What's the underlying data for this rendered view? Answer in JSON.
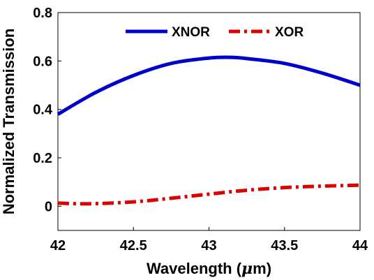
{
  "chart_data": {
    "type": "line",
    "xlabel_prefix": "Wavelength (",
    "xlabel_unit_symbol": "μ",
    "xlabel_suffix": "m)",
    "ylabel": "Normalized Transmission",
    "xlim": [
      42,
      44
    ],
    "ylim": [
      -0.1,
      0.8
    ],
    "xticks": [
      "42",
      "42.5",
      "43",
      "43.5",
      "44"
    ],
    "yticks": [
      "0",
      "0.2",
      "0.4",
      "0.6",
      "0.8"
    ],
    "grid": false,
    "legend_position": "top",
    "series": [
      {
        "name": "XNOR",
        "color": "#0000cc",
        "style": "solid",
        "x": [
          42.0,
          42.25,
          42.5,
          42.75,
          43.0,
          43.15,
          43.25,
          43.5,
          43.75,
          44.0
        ],
        "y": [
          0.38,
          0.47,
          0.54,
          0.59,
          0.612,
          0.615,
          0.61,
          0.59,
          0.55,
          0.5
        ]
      },
      {
        "name": "XOR",
        "color": "#dd0000",
        "style": "dash-dot",
        "x": [
          42.0,
          42.2,
          42.5,
          42.75,
          43.0,
          43.25,
          43.5,
          43.75,
          44.0
        ],
        "y": [
          0.013,
          0.01,
          0.018,
          0.033,
          0.05,
          0.066,
          0.077,
          0.083,
          0.087
        ]
      }
    ]
  }
}
